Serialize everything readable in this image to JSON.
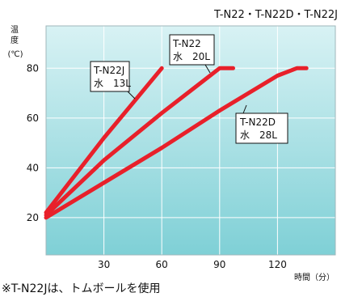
{
  "chart_data": {
    "type": "line",
    "title": "T-N22・T-N22D・T-N22J",
    "ylabel_chars": [
      "温",
      "度"
    ],
    "yunit": "(℃)",
    "xlabel": "時間（分）",
    "xlim": [
      0,
      150
    ],
    "ylim": [
      5,
      97
    ],
    "xticks": [
      30,
      60,
      90,
      120
    ],
    "yticks": [
      20,
      40,
      60,
      80
    ],
    "grid": true,
    "background_gradient": [
      "#d8f2f4",
      "#7fd0d6"
    ],
    "line_color": "#e8202a",
    "series": [
      {
        "name": "T-N22J",
        "note": "水　13L",
        "x": [
          0,
          30,
          60
        ],
        "y": [
          22,
          52,
          80
        ]
      },
      {
        "name": "T-N22",
        "note": "水　20L",
        "x": [
          0,
          30,
          60,
          90,
          97
        ],
        "y": [
          21,
          43,
          62,
          80,
          80
        ]
      },
      {
        "name": "T-N22D",
        "note": "水　28L",
        "x": [
          0,
          30,
          60,
          90,
          120,
          130,
          135
        ],
        "y": [
          20,
          34,
          48,
          63,
          77,
          80,
          80
        ]
      }
    ]
  },
  "footnote": "※T-N22Jは、トムボールを使用"
}
